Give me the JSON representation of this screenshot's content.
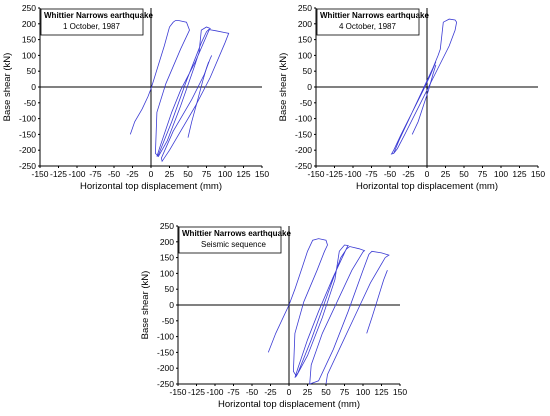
{
  "chart_data": [
    {
      "type": "line",
      "title": "Whittier Narrows earthquake",
      "subtitle": "1 October, 1987",
      "xlabel": "Horizontal top displacement (mm)",
      "ylabel": "Base shear (kN)",
      "xlim": [
        -150,
        150
      ],
      "ylim": [
        -250,
        250
      ],
      "xticks": [
        "-150",
        "-125",
        "-100",
        "-75",
        "-50",
        "-25",
        "0",
        "25",
        "50",
        "75",
        "100",
        "125",
        "150"
      ],
      "yticks": [
        "250",
        "200",
        "150",
        "100",
        "50",
        "0",
        "-50",
        "-100",
        "-150",
        "-200",
        "-250"
      ],
      "series": [
        {
          "x": [
            -28,
            -22,
            -12,
            -4,
            0,
            4,
            10,
            18,
            25,
            30,
            33,
            38,
            48,
            52,
            50,
            40,
            20,
            8,
            6,
            10,
            22,
            40,
            58,
            65,
            68,
            75,
            80,
            78,
            60,
            40,
            28,
            12,
            8,
            10,
            28,
            48,
            68,
            75,
            78,
            88,
            100,
            105,
            100,
            80,
            60,
            45,
            25,
            15,
            14,
            30,
            55,
            72,
            80,
            82
          ],
          "y": [
            -150,
            -110,
            -70,
            -30,
            -5,
            25,
            70,
            130,
            190,
            205,
            210,
            210,
            205,
            180,
            170,
            120,
            10,
            -80,
            -210,
            -220,
            -170,
            -60,
            60,
            110,
            180,
            190,
            185,
            178,
            80,
            -10,
            -80,
            -190,
            -220,
            -215,
            -110,
            20,
            140,
            175,
            182,
            178,
            172,
            170,
            140,
            30,
            -60,
            -120,
            -200,
            -235,
            -225,
            -140,
            -40,
            40,
            90,
            100
          ]
        },
        {
          "x": [
            50,
            55,
            62,
            70,
            75,
            78
          ],
          "y": [
            -160,
            -110,
            -50,
            20,
            60,
            80
          ]
        }
      ]
    },
    {
      "type": "line",
      "title": "Whittier Narrows earthquake",
      "subtitle": "4 October, 1987",
      "xlabel": "Horizontal top displacement (mm)",
      "ylabel": "Base shear (kN)",
      "xlim": [
        -150,
        150
      ],
      "ylim": [
        -250,
        250
      ],
      "xticks": [
        "-150",
        "-125",
        "-100",
        "-75",
        "-50",
        "-25",
        "0",
        "25",
        "50",
        "75",
        "100",
        "125",
        "150"
      ],
      "yticks": [
        "250",
        "200",
        "150",
        "100",
        "50",
        "0",
        "-50",
        "-100",
        "-150",
        "-200",
        "-250"
      ],
      "series": [
        {
          "x": [
            -45,
            -38,
            -28,
            -18,
            -8,
            0,
            8,
            15,
            18,
            22,
            30,
            38,
            40,
            38,
            30,
            15,
            0,
            -15,
            -30,
            -40,
            -45,
            -48,
            -45,
            -35,
            -20,
            -5,
            5,
            12
          ],
          "y": [
            -210,
            -170,
            -120,
            -70,
            -20,
            20,
            60,
            100,
            120,
            205,
            215,
            212,
            205,
            180,
            130,
            60,
            -10,
            -80,
            -150,
            -195,
            -210,
            -212,
            -200,
            -150,
            -80,
            -10,
            40,
            80
          ]
        },
        {
          "x": [
            -20,
            -12,
            -5,
            2,
            8,
            12
          ],
          "y": [
            -150,
            -110,
            -60,
            -10,
            40,
            70
          ]
        }
      ]
    },
    {
      "type": "line",
      "title": "Whittier Narrows earthquake",
      "subtitle": "Seismic sequence",
      "xlabel": "Horizontal top displacement (mm)",
      "ylabel": "Base shear (kN)",
      "xlim": [
        -150,
        150
      ],
      "ylim": [
        -250,
        250
      ],
      "xticks": [
        "-150",
        "-125",
        "-100",
        "-75",
        "-50",
        "-25",
        "0",
        "25",
        "50",
        "75",
        "100",
        "125",
        "150"
      ],
      "yticks": [
        "250",
        "200",
        "150",
        "100",
        "50",
        "0",
        "-50",
        "-100",
        "-150",
        "-200",
        "-250"
      ],
      "series": [
        {
          "x": [
            -28,
            -18,
            -8,
            0,
            8,
            18,
            25,
            32,
            40,
            50,
            52,
            48,
            38,
            20,
            8,
            6,
            10,
            25,
            45,
            62,
            68,
            75,
            80,
            78,
            60,
            40,
            25,
            12,
            8,
            12,
            30,
            50,
            70,
            78,
            82,
            95,
            102,
            100,
            85,
            65,
            45,
            30,
            28,
            40,
            60,
            80,
            100,
            108,
            112,
            125,
            135,
            130,
            110,
            90,
            70,
            52,
            50
          ],
          "y": [
            -150,
            -90,
            -40,
            0,
            50,
            120,
            170,
            205,
            210,
            205,
            190,
            170,
            110,
            10,
            -90,
            -210,
            -225,
            -160,
            -40,
            80,
            170,
            190,
            188,
            180,
            90,
            -20,
            -110,
            -200,
            -230,
            -215,
            -110,
            20,
            150,
            178,
            185,
            178,
            172,
            168,
            110,
            10,
            -90,
            -190,
            -250,
            -240,
            -140,
            -20,
            110,
            160,
            170,
            165,
            158,
            150,
            70,
            -30,
            -130,
            -220,
            -250
          ]
        },
        {
          "x": [
            105,
            112,
            120,
            128,
            133
          ],
          "y": [
            -90,
            -40,
            20,
            80,
            110
          ]
        }
      ]
    }
  ]
}
